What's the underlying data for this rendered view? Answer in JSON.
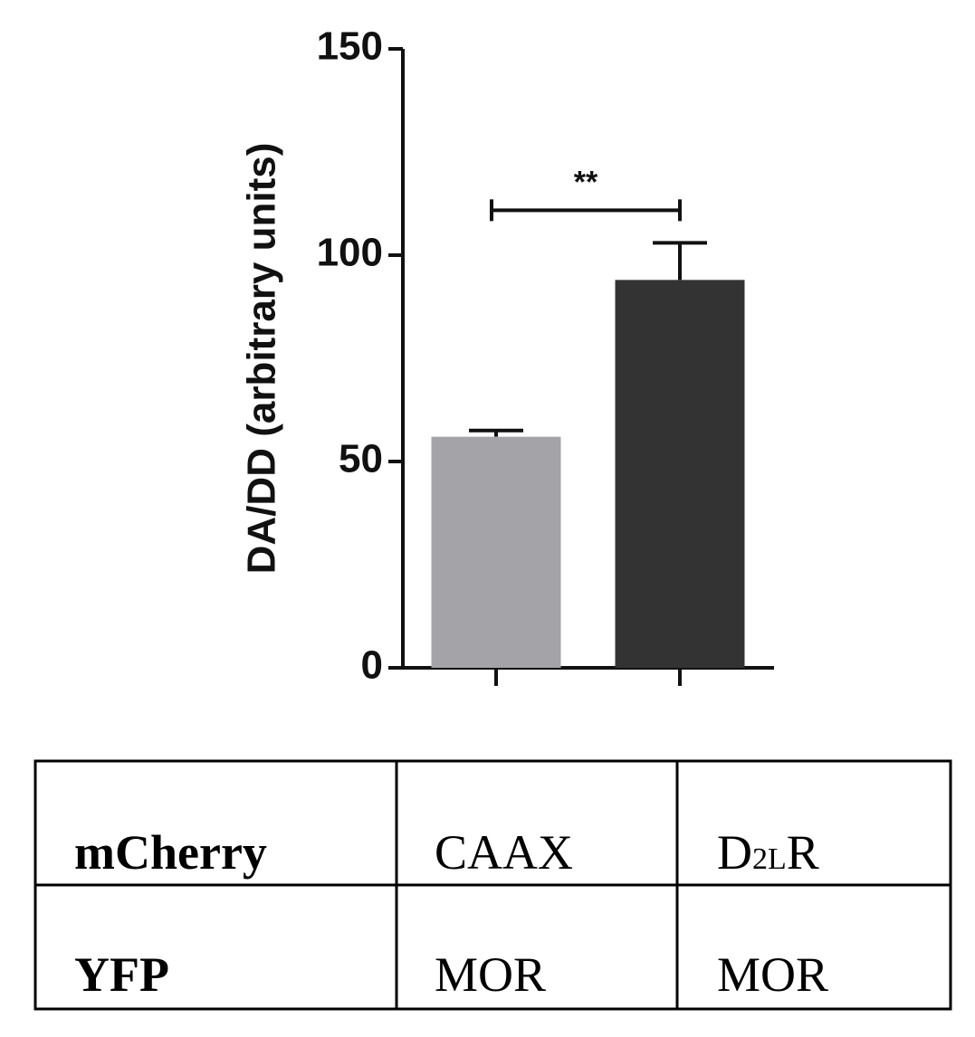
{
  "chart_data": {
    "type": "bar",
    "ylabel": "DA/DD (arbitrary units)",
    "categories": [
      null,
      null
    ],
    "values": [
      56,
      94
    ],
    "errors": [
      1.5,
      9
    ],
    "colors": [
      "#a4a3a8",
      "#333333"
    ],
    "ylim": [
      0,
      150
    ],
    "yticks": [
      0,
      50,
      100,
      150
    ],
    "annotation": "**"
  },
  "table": {
    "rows": [
      [
        "mCherry",
        "CAAX",
        [
          "D",
          "2L",
          "R"
        ]
      ],
      [
        "YFP",
        "MOR",
        "MOR"
      ]
    ]
  }
}
